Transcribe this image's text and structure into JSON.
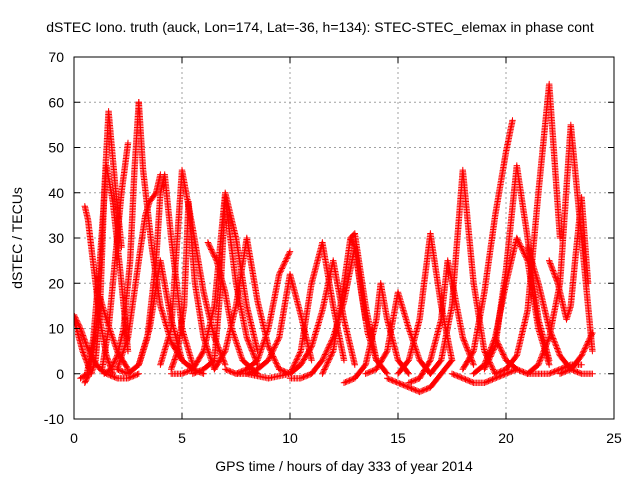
{
  "chart_data": {
    "type": "scatter",
    "title": "dSTEC Iono. truth (auck, Lon=174, Lat=-36, h=134): STEC-STEC_elemax in phase cont",
    "xlabel": "GPS time / hours of day 333 of year 2014",
    "ylabel": "dSTEC  / TECUs",
    "xlim": [
      0,
      25
    ],
    "ylim": [
      -10,
      70
    ],
    "xticks": [
      0,
      5,
      10,
      15,
      20,
      25
    ],
    "yticks": [
      -10,
      0,
      10,
      20,
      30,
      40,
      50,
      60,
      70
    ],
    "x_tick_labels": [
      "0",
      "5",
      "10",
      "15",
      "20",
      "25"
    ],
    "y_tick_labels": [
      "-10",
      "0",
      "10",
      "20",
      "30",
      "40",
      "50",
      "60",
      "70"
    ],
    "grid": true,
    "legend": "none",
    "marker": "plus",
    "series_color": "#ff0000",
    "series": [
      {
        "x": [
          0.0,
          0.4,
          0.8,
          1.0,
          1.2,
          1.4,
          1.6,
          1.9,
          2.2
        ],
        "y": [
          12,
          5,
          0,
          3,
          14,
          40,
          58,
          42,
          28
        ]
      },
      {
        "x": [
          0.3,
          0.6,
          0.9,
          1.2,
          1.5,
          1.8,
          2.2,
          2.5
        ],
        "y": [
          -1,
          0,
          8,
          25,
          46,
          38,
          20,
          5
        ]
      },
      {
        "x": [
          0.5,
          0.7,
          0.9,
          1.2,
          1.5,
          2.0,
          2.5
        ],
        "y": [
          -2,
          0,
          6,
          17,
          12,
          5,
          1
        ]
      },
      {
        "x": [
          0.5,
          0.65,
          0.8,
          1.0,
          1.2,
          1.5,
          1.8
        ],
        "y": [
          37,
          34,
          28,
          20,
          12,
          4,
          0
        ]
      },
      {
        "x": [
          0.0,
          0.3,
          0.6,
          0.9,
          1.2,
          1.5,
          2.0,
          2.5,
          3.0
        ],
        "y": [
          13,
          10,
          6,
          3,
          1,
          0,
          -1,
          -1,
          0
        ]
      },
      {
        "x": [
          1.3,
          1.6,
          1.9,
          2.2,
          2.5
        ],
        "y": [
          1,
          10,
          25,
          40,
          51
        ]
      },
      {
        "x": [
          1.4,
          1.7,
          2.0,
          2.3,
          2.6,
          2.8,
          3.0
        ],
        "y": [
          0,
          1,
          4,
          10,
          25,
          45,
          60
        ]
      },
      {
        "x": [
          3.0,
          3.2,
          3.6,
          4.0,
          4.5,
          5.0,
          5.5,
          6.0
        ],
        "y": [
          60,
          45,
          28,
          15,
          7,
          3,
          1,
          0
        ]
      },
      {
        "x": [
          2.0,
          2.5,
          3.0,
          3.5,
          4.0,
          4.5,
          5.0
        ],
        "y": [
          1,
          0,
          2,
          10,
          25,
          12,
          3
        ]
      },
      {
        "x": [
          3.0,
          3.4,
          3.8,
          4.0,
          4.2,
          4.5,
          5.0,
          5.5
        ],
        "y": [
          2,
          8,
          25,
          40,
          44,
          30,
          10,
          2
        ]
      },
      {
        "x": [
          2.0,
          2.5,
          3.0,
          3.3,
          3.5,
          3.8,
          4.0
        ],
        "y": [
          1,
          8,
          25,
          35,
          38,
          40,
          44
        ]
      },
      {
        "x": [
          4.0,
          4.5,
          5.0,
          5.5,
          6.0,
          6.5,
          7.0
        ],
        "y": [
          2,
          10,
          45,
          32,
          18,
          8,
          2
        ]
      },
      {
        "x": [
          4.5,
          4.8,
          5.1,
          5.3,
          5.6,
          6.0,
          6.5
        ],
        "y": [
          1,
          5,
          15,
          38,
          20,
          8,
          1
        ]
      },
      {
        "x": [
          4.5,
          5.0,
          5.5,
          6.0,
          6.5,
          7.0,
          7.5,
          8.0,
          8.5
        ],
        "y": [
          0,
          0,
          1,
          5,
          15,
          40,
          30,
          15,
          5
        ]
      },
      {
        "x": [
          5.5,
          6.0,
          6.5,
          6.8,
          7.0,
          7.5,
          8.0,
          8.5
        ],
        "y": [
          0,
          1,
          3,
          20,
          39,
          20,
          8,
          2
        ]
      },
      {
        "x": [
          6.5,
          7.0,
          7.5,
          8.0,
          8.5,
          9.0,
          9.5
        ],
        "y": [
          1,
          5,
          15,
          30,
          16,
          6,
          1
        ]
      },
      {
        "x": [
          6.2,
          6.6,
          7.0,
          7.3,
          7.8,
          8.5
        ],
        "y": [
          29,
          25,
          18,
          10,
          3,
          0
        ]
      },
      {
        "x": [
          7.0,
          7.5,
          8.0,
          8.5,
          9.0,
          9.5,
          10.0
        ],
        "y": [
          1,
          0,
          1,
          3,
          10,
          22,
          27
        ]
      },
      {
        "x": [
          7.5,
          8.0,
          8.5,
          9.0,
          9.5,
          10.0,
          10.5,
          11.0
        ],
        "y": [
          0,
          0,
          1,
          3,
          8,
          22,
          13,
          3
        ]
      },
      {
        "x": [
          8.0,
          9.0,
          10.0,
          10.5,
          11.0,
          11.5,
          12.0,
          12.5
        ],
        "y": [
          0,
          -1,
          0,
          5,
          20,
          29,
          15,
          3
        ]
      },
      {
        "x": [
          9.5,
          10.0,
          10.5,
          11.0,
          11.5,
          12.0,
          12.5,
          13.0
        ],
        "y": [
          1,
          0,
          2,
          6,
          14,
          25,
          12,
          2
        ]
      },
      {
        "x": [
          10.0,
          10.5,
          11.0,
          11.5,
          12.0,
          12.5,
          13.0,
          13.5
        ],
        "y": [
          -1,
          -1,
          0,
          3,
          8,
          16,
          28,
          12
        ]
      },
      {
        "x": [
          11.5,
          12.0,
          12.5,
          12.8,
          13.0,
          13.5,
          14.0
        ],
        "y": [
          0,
          5,
          20,
          30,
          31,
          15,
          3
        ]
      },
      {
        "x": [
          12.8,
          13.0,
          13.3,
          13.6,
          14.0,
          14.5
        ],
        "y": [
          30,
          28,
          18,
          9,
          3,
          0
        ]
      },
      {
        "x": [
          12.5,
          13.0,
          13.5,
          14.0,
          14.2,
          14.5,
          15.0,
          15.5
        ],
        "y": [
          -2,
          -1,
          2,
          12,
          20,
          12,
          3,
          0
        ]
      },
      {
        "x": [
          13.5,
          14.0,
          14.5,
          15.0,
          15.5,
          16.0,
          16.5
        ],
        "y": [
          0,
          1,
          5,
          18,
          10,
          3,
          0
        ]
      },
      {
        "x": [
          14.5,
          15.0,
          15.5,
          16.0,
          16.5,
          17.0,
          17.5
        ],
        "y": [
          -1,
          -2,
          -3,
          -4,
          -3,
          0,
          3
        ]
      },
      {
        "x": [
          15.0,
          15.5,
          16.0,
          16.5,
          17.0,
          17.5
        ],
        "y": [
          0,
          3,
          12,
          31,
          15,
          3
        ]
      },
      {
        "x": [
          15.5,
          16.0,
          16.5,
          17.0,
          17.3,
          17.6,
          18.0,
          18.5
        ],
        "y": [
          -2,
          -1,
          3,
          12,
          25,
          18,
          8,
          2
        ]
      },
      {
        "x": [
          16.5,
          17.0,
          17.5,
          18.0,
          18.5,
          19.0,
          19.5
        ],
        "y": [
          0,
          3,
          15,
          45,
          20,
          5,
          0
        ]
      },
      {
        "x": [
          17.5,
          18.0,
          18.5,
          19.0,
          19.5,
          20.0,
          20.5
        ],
        "y": [
          0,
          -1,
          -2,
          -2,
          -1,
          0,
          1
        ]
      },
      {
        "x": [
          18.0,
          18.5,
          19.0,
          19.5,
          20.0,
          20.3
        ],
        "y": [
          1,
          5,
          18,
          35,
          49,
          56
        ]
      },
      {
        "x": [
          18.5,
          19.0,
          19.5,
          20.0,
          20.5,
          21.0,
          21.5,
          22.0
        ],
        "y": [
          0,
          2,
          8,
          20,
          30,
          25,
          10,
          2
        ]
      },
      {
        "x": [
          19.0,
          19.5,
          20.0,
          20.5,
          21.0,
          21.5,
          22.0
        ],
        "y": [
          1,
          6,
          23,
          46,
          30,
          12,
          3
        ]
      },
      {
        "x": [
          19.5,
          20.0,
          20.5,
          21.0,
          21.5,
          22.0,
          22.5
        ],
        "y": [
          0,
          1,
          4,
          14,
          40,
          64,
          30
        ]
      },
      {
        "x": [
          19.5,
          20.0,
          20.5,
          21.0,
          21.5,
          22.0,
          22.5,
          23.0,
          23.5
        ],
        "y": [
          8,
          3,
          1,
          0,
          0,
          0,
          1,
          2,
          2
        ]
      },
      {
        "x": [
          21.0,
          21.5,
          22.0,
          22.5,
          23.0,
          23.5,
          24.0
        ],
        "y": [
          0,
          2,
          8,
          20,
          55,
          30,
          5
        ]
      },
      {
        "x": [
          22.0,
          22.4,
          22.8,
          23.0,
          23.2,
          23.5,
          23.8
        ],
        "y": [
          25,
          20,
          12,
          15,
          25,
          39,
          20
        ]
      },
      {
        "x": [
          21.0,
          21.5,
          22.0,
          22.5,
          23.0,
          23.5,
          24.0
        ],
        "y": [
          28,
          20,
          10,
          4,
          1,
          0,
          0
        ]
      },
      {
        "x": [
          22.5,
          23.0,
          23.5,
          24.0
        ],
        "y": [
          0,
          1,
          4,
          9
        ]
      }
    ]
  }
}
